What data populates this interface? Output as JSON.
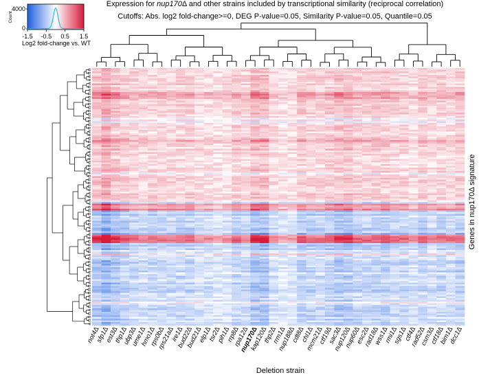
{
  "chart_data": {
    "type": "heatmap",
    "title_pre": "Expression for ",
    "title_strain": "nup170",
    "title_post": " and other strains included by transcriptional similarity (reciprocal correlation)",
    "cutoffs": "Cutoffs: Abs. log2 fold-change>=0, DEG P-value=0.05, Similarity P-value=0.05, Quantile=0.05",
    "xlabel": "Deletion strain",
    "ylabel": "Genes in nup170Δ signature",
    "highlighted_strain": "nup170Δ",
    "columns": [
      "not4Δ",
      "sfp1Δ",
      "est3Δ",
      "thp1Δ",
      "ubp3Δ",
      "ume1Δ",
      "hmo1Δ",
      "rps0bΔ",
      "rps21aΔ",
      "ire1Δ",
      "bud22Δ",
      "bud21Δ",
      "elp1Δ",
      "tsr2Δ",
      "pih1Δ",
      "rrp8Δ",
      "rpa12Δ",
      "nup170Δ",
      "kap120Δ",
      "thp2Δ",
      "rrm1Δ",
      "nup188Δ",
      "cdt8Δ",
      "chl1Δ",
      "mcm21Δ",
      "ctf19Δ",
      "sac3Δ",
      "nup120Δ",
      "nup60Δ",
      "esc2Δ",
      "rad18Δ",
      "wss1Δ",
      "rmi1Δ",
      "sgs1Δ",
      "ctf4Δ",
      "rad52Δ",
      "csm3Δ",
      "ctf18Δ",
      "bim1Δ",
      "dcc1Δ"
    ],
    "rows_described": "genes (unlabeled, dendrogram-ordered)",
    "colorscale": {
      "label": "Log2 fold-change vs. WT",
      "min": -1.5,
      "max": 1.5,
      "ticks": [
        "-1.5",
        "-0.5",
        "0.5",
        "1.5"
      ],
      "low_color": "#1f5fe0",
      "mid_color": "#ffffff",
      "high_color": "#d81b3a",
      "density_ylabel": "Count",
      "density_ticks": [
        "4000",
        "0"
      ],
      "density_color": "#22c4d8"
    }
  }
}
